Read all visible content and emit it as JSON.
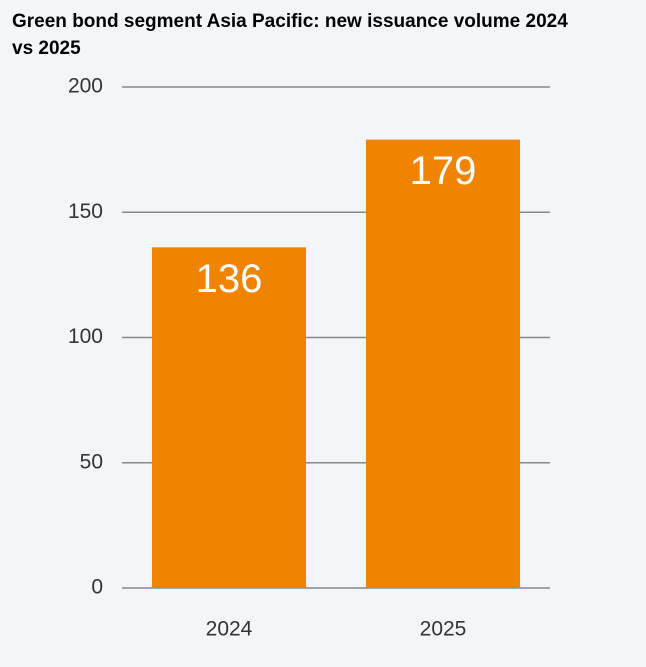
{
  "chart_data": {
    "type": "bar",
    "title": "Green bond segment Asia Pacific: new issuance volume 2024 vs 2025",
    "categories": [
      "2024",
      "2025"
    ],
    "values": [
      136,
      179
    ],
    "color": "#f08300",
    "ylim": [
      0,
      200
    ],
    "yticks": [
      0,
      50,
      100,
      150,
      200
    ],
    "grid": true
  }
}
